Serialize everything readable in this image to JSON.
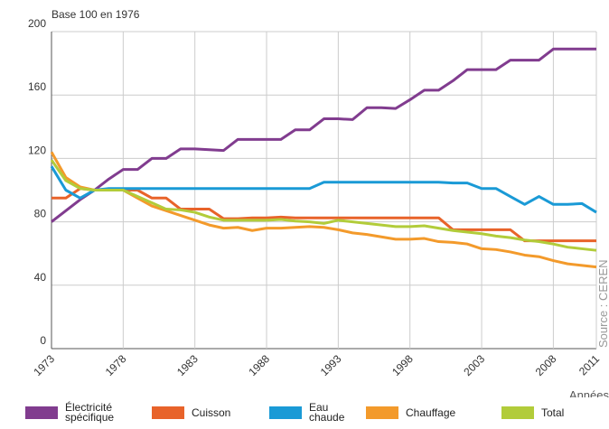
{
  "chart_data": {
    "type": "line",
    "subtitle": "Base 100 en 1976",
    "x_label": "Années",
    "source": "Source : CEREN",
    "x": [
      1973,
      1974,
      1975,
      1976,
      1977,
      1978,
      1979,
      1980,
      1981,
      1982,
      1983,
      1984,
      1985,
      1986,
      1987,
      1988,
      1989,
      1990,
      1991,
      1992,
      1993,
      1994,
      1995,
      1996,
      1997,
      1998,
      1999,
      2000,
      2001,
      2002,
      2003,
      2004,
      2005,
      2006,
      2007,
      2008,
      2009,
      2010,
      2011
    ],
    "xlim": [
      1973,
      2011
    ],
    "xticks": [
      1973,
      1978,
      1983,
      1988,
      1993,
      1998,
      2003,
      2008,
      2011
    ],
    "ylim": [
      0,
      200
    ],
    "yticks": [
      0,
      40,
      80,
      120,
      160,
      200
    ],
    "grid": true,
    "series": [
      {
        "name": "Électricité spécifique",
        "color": "#813c8f",
        "values": [
          80,
          87,
          94,
          100,
          107,
          113,
          113,
          120,
          120,
          126,
          126,
          125.5,
          125,
          132,
          132,
          132,
          132,
          138,
          138,
          145,
          145,
          144.5,
          152,
          152,
          151.5,
          157,
          163,
          163,
          169,
          176,
          176,
          176,
          182,
          182,
          182,
          189,
          189,
          189,
          189
        ]
      },
      {
        "name": "Cuisson",
        "color": "#e8632a",
        "values": [
          95,
          95,
          101,
          100,
          100,
          100,
          100,
          95,
          95,
          88,
          88,
          88,
          82,
          82,
          82.5,
          82.5,
          83,
          82.5,
          82.5,
          82.5,
          82.5,
          82.5,
          82.5,
          82.5,
          82.5,
          82.5,
          82.5,
          82.5,
          75,
          75,
          75,
          75,
          75,
          68,
          68,
          68,
          68,
          68,
          68
        ]
      },
      {
        "name": "Eau chaude",
        "color": "#1a9ad6",
        "values": [
          115,
          100,
          95,
          100,
          101,
          101,
          101,
          101,
          101,
          101,
          101,
          101,
          101,
          101,
          101,
          101,
          101,
          101,
          101,
          105,
          105,
          105,
          105,
          105,
          105,
          105,
          105,
          105,
          104.5,
          104.5,
          101,
          101,
          96,
          91,
          96,
          91,
          91,
          91.5,
          86
        ]
      },
      {
        "name": "Chauffage",
        "color": "#f39a2b",
        "values": [
          124,
          108,
          102,
          100,
          100,
          100,
          95,
          90,
          87,
          84,
          81,
          78,
          76,
          76.5,
          74.5,
          76,
          76,
          76.5,
          77,
          76.5,
          75,
          73,
          72,
          70.5,
          69,
          69,
          69.5,
          67.5,
          67,
          66,
          63,
          62.5,
          61,
          59,
          58,
          55.5,
          53.5,
          52.5,
          51.5
        ]
      },
      {
        "name": "Total",
        "color": "#b2cc3a",
        "values": [
          119,
          106,
          101,
          100,
          100,
          100,
          96,
          92,
          88,
          87.5,
          86,
          83,
          81,
          81,
          81,
          81,
          81.5,
          80.5,
          80,
          79,
          81,
          80,
          79,
          78,
          77,
          77,
          77.5,
          76,
          74.5,
          73.5,
          72.5,
          71,
          70,
          68.5,
          67.5,
          66,
          64,
          63,
          62
        ]
      }
    ]
  }
}
